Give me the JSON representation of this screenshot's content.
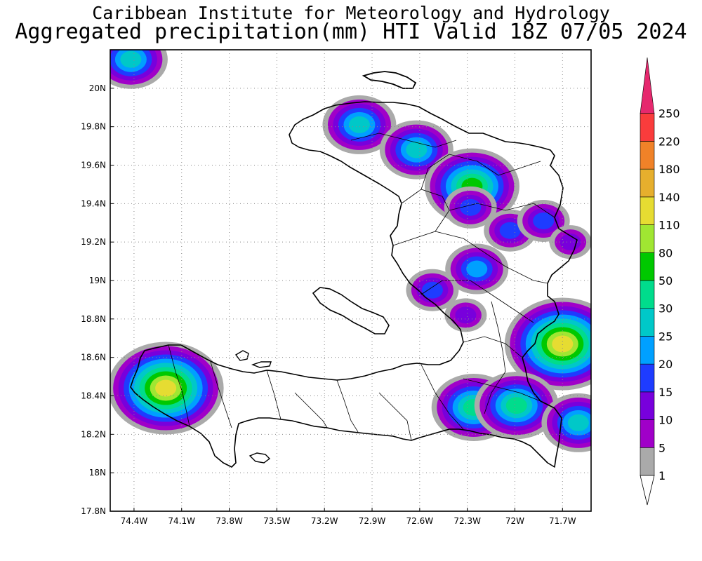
{
  "title": {
    "line1": "Caribbean Institute for Meteorology and Hydrology",
    "line2": "Aggregated precipitation(mm) HTI Valid 18Z 07/05 2024"
  },
  "map": {
    "lon_range": [
      -74.55,
      -71.52
    ],
    "lat_range": [
      17.8,
      20.2
    ],
    "lat_ticks": [
      {
        "value": 20.0,
        "label": "20N"
      },
      {
        "value": 19.8,
        "label": "19.8N"
      },
      {
        "value": 19.6,
        "label": "19.6N"
      },
      {
        "value": 19.4,
        "label": "19.4N"
      },
      {
        "value": 19.2,
        "label": "19.2N"
      },
      {
        "value": 19.0,
        "label": "19N"
      },
      {
        "value": 18.8,
        "label": "18.8N"
      },
      {
        "value": 18.6,
        "label": "18.6N"
      },
      {
        "value": 18.4,
        "label": "18.4N"
      },
      {
        "value": 18.2,
        "label": "18.2N"
      },
      {
        "value": 18.0,
        "label": "18N"
      },
      {
        "value": 17.8,
        "label": "17.8N"
      }
    ],
    "lon_ticks": [
      {
        "value": -74.4,
        "label": "74.4W"
      },
      {
        "value": -74.1,
        "label": "74.1W"
      },
      {
        "value": -73.8,
        "label": "73.8W"
      },
      {
        "value": -73.5,
        "label": "73.5W"
      },
      {
        "value": -73.2,
        "label": "73.2W"
      },
      {
        "value": -72.9,
        "label": "72.9W"
      },
      {
        "value": -72.6,
        "label": "72.6W"
      },
      {
        "value": -72.3,
        "label": "72.3W"
      },
      {
        "value": -72.0,
        "label": "72W"
      },
      {
        "value": -71.7,
        "label": "71.7W"
      }
    ],
    "grid": "dotted"
  },
  "colorbar": {
    "levels": [
      "1",
      "5",
      "10",
      "15",
      "20",
      "25",
      "30",
      "50",
      "80",
      "110",
      "140",
      "180",
      "220",
      "250"
    ],
    "colors": [
      "#aaaaaa",
      "#a000c8",
      "#7800dc",
      "#1e3cff",
      "#00a0ff",
      "#00c8c8",
      "#00dc8c",
      "#00c800",
      "#a0e632",
      "#e6dc32",
      "#e6af2d",
      "#f08228",
      "#fa3c3c",
      "#e6286e"
    ]
  },
  "precip_cells": [
    {
      "lon": -74.42,
      "lat": 20.15,
      "mm": 25
    },
    {
      "lon": -74.2,
      "lat": 18.44,
      "mm": 110
    },
    {
      "lon": -72.98,
      "lat": 19.81,
      "mm": 25
    },
    {
      "lon": -72.62,
      "lat": 19.68,
      "mm": 25
    },
    {
      "lon": -72.27,
      "lat": 19.49,
      "mm": 50
    },
    {
      "lon": -72.28,
      "lat": 19.38,
      "mm": 15
    },
    {
      "lon": -72.03,
      "lat": 19.26,
      "mm": 15
    },
    {
      "lon": -71.82,
      "lat": 19.31,
      "mm": 15
    },
    {
      "lon": -71.65,
      "lat": 19.2,
      "mm": 10
    },
    {
      "lon": -72.24,
      "lat": 19.06,
      "mm": 20
    },
    {
      "lon": -72.52,
      "lat": 18.95,
      "mm": 15
    },
    {
      "lon": -72.31,
      "lat": 18.82,
      "mm": 10
    },
    {
      "lon": -71.7,
      "lat": 18.67,
      "mm": 110
    },
    {
      "lon": -72.26,
      "lat": 18.34,
      "mm": 30
    },
    {
      "lon": -71.99,
      "lat": 18.35,
      "mm": 30
    },
    {
      "lon": -71.6,
      "lat": 18.26,
      "mm": 25
    }
  ]
}
